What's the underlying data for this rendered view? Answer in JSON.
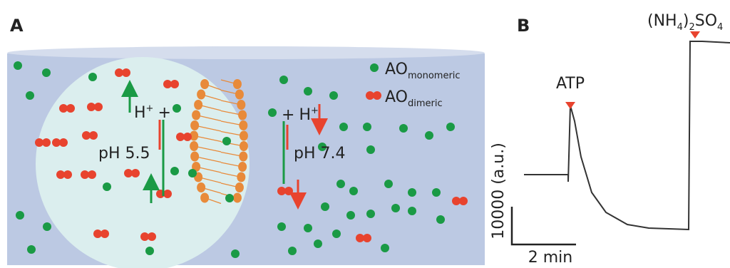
{
  "panel_a": {
    "label": "A",
    "legend": [
      {
        "base": "AO",
        "sub": "monomeric"
      },
      {
        "base": "AO",
        "sub": "dimeric"
      }
    ],
    "inside": {
      "ion": "H",
      "charge": "+",
      "plus": "+",
      "ph": "pH 5.5"
    },
    "outside": {
      "plus": "+",
      "ion": "H",
      "charge": "+",
      "ph": "pH 7.4"
    }
  },
  "panel_b": {
    "label": "B",
    "atp": "ATP",
    "salt": [
      "(NH",
      "4",
      ")",
      "2",
      "SO",
      "4"
    ],
    "y_scale": "10000 (a.u.)",
    "x_scale": "2 min"
  }
}
